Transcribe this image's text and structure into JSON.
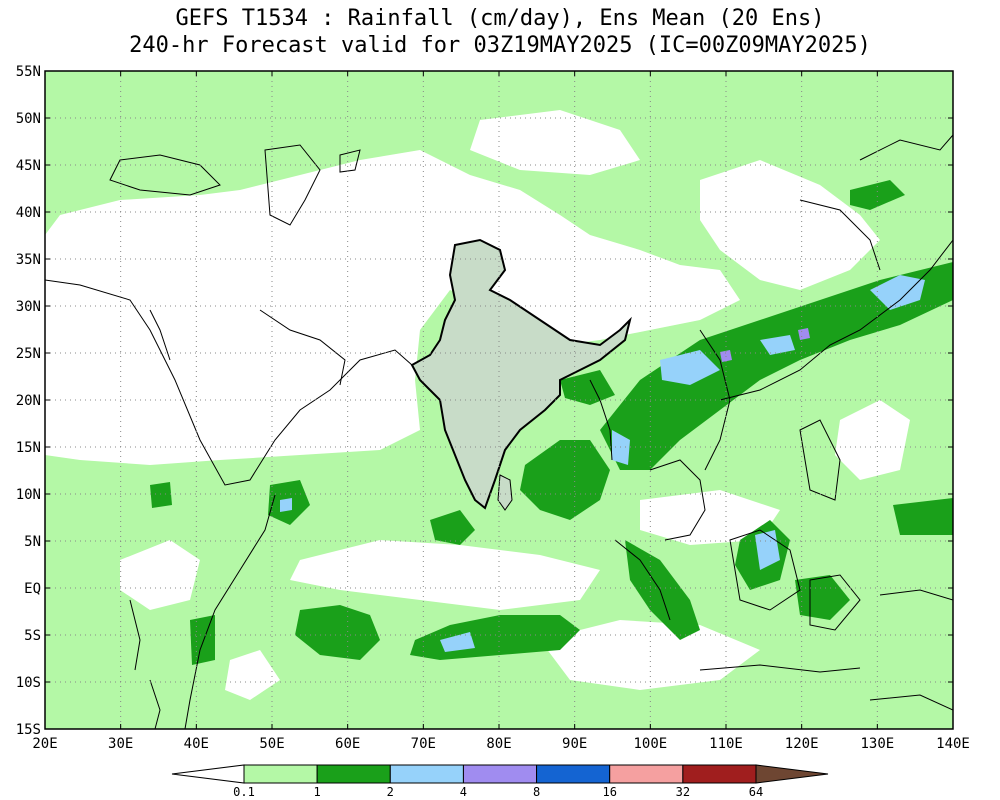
{
  "title": {
    "line1": "GEFS T1534 : Rainfall (cm/day), Ens Mean (20 Ens)",
    "line2": "240-hr Forecast valid for 03Z19MAY2025 (IC=00Z09MAY2025)"
  },
  "map": {
    "lon_range": [
      20,
      140
    ],
    "lat_range": [
      -15,
      55
    ],
    "lon_ticks": [
      "20E",
      "30E",
      "40E",
      "50E",
      "60E",
      "70E",
      "80E",
      "90E",
      "100E",
      "110E",
      "120E",
      "130E",
      "140E"
    ],
    "lat_ticks": [
      "55N",
      "50N",
      "45N",
      "40N",
      "35N",
      "30N",
      "25N",
      "20N",
      "15N",
      "10N",
      "5N",
      "EQ",
      "5S",
      "10S",
      "15S"
    ],
    "grid": true
  },
  "legend": {
    "labels": [
      "0.1",
      "1",
      "2",
      "4",
      "8",
      "16",
      "32",
      "64"
    ],
    "colors": [
      "#ffffff",
      "#b4f8a6",
      "#1aa01a",
      "#96d2fa",
      "#a08cf0",
      "#1464d2",
      "#f5a0a0",
      "#a01e1e",
      "#6e4632"
    ]
  }
}
